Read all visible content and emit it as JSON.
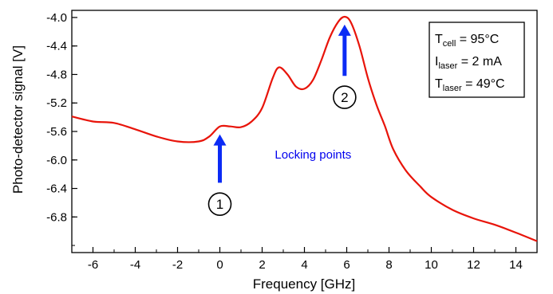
{
  "chart_data": {
    "type": "line",
    "xlabel": "Frequency [GHz]",
    "ylabel": "Photo-detector signal [V]",
    "xlim": [
      -7,
      15
    ],
    "ylim": [
      -7.3,
      -3.9
    ],
    "xticks": [
      -6,
      -4,
      -2,
      0,
      2,
      4,
      6,
      8,
      10,
      12,
      14
    ],
    "xtick_labels": [
      "-6",
      "-4",
      "-2",
      "0",
      "2",
      "4",
      "6",
      "8",
      "10",
      "12",
      "14"
    ],
    "yticks": [
      -4.0,
      -4.4,
      -4.8,
      -5.2,
      -5.6,
      -6.0,
      -6.4,
      -6.8
    ],
    "ytick_labels": [
      "-4.0",
      "-4.4",
      "-4.8",
      "-5.2",
      "-5.6",
      "-6.0",
      "-6.4",
      "-6.8"
    ],
    "grid": false,
    "series": [
      {
        "color": "#e8140a",
        "x": [
          -7,
          -6,
          -5,
          -4,
          -3,
          -2,
          -1,
          -0.5,
          0,
          0.5,
          1,
          1.5,
          2,
          2.5,
          2.8,
          3.2,
          3.6,
          4,
          4.4,
          4.8,
          5.2,
          5.6,
          5.9,
          6.2,
          6.6,
          7,
          7.4,
          7.8,
          8.2,
          8.8,
          9.5,
          10,
          11,
          12,
          13,
          14,
          15
        ],
        "y": [
          -5.39,
          -5.46,
          -5.48,
          -5.57,
          -5.67,
          -5.74,
          -5.74,
          -5.67,
          -5.53,
          -5.53,
          -5.54,
          -5.46,
          -5.27,
          -4.85,
          -4.7,
          -4.8,
          -4.97,
          -5.0,
          -4.88,
          -4.6,
          -4.28,
          -4.06,
          -3.99,
          -4.07,
          -4.4,
          -4.85,
          -5.22,
          -5.52,
          -5.85,
          -6.15,
          -6.38,
          -6.52,
          -6.7,
          -6.82,
          -6.91,
          -7.02,
          -7.14
        ]
      }
    ],
    "legend": {
      "line1": {
        "main": "T",
        "sub": "cell",
        "rest": " = 95°C"
      },
      "line2": {
        "main": "I",
        "sub": "laser",
        "rest": " = 2 mA"
      },
      "line3": {
        "main": "T",
        "sub": "laser",
        "rest": " = 49°C"
      },
      "placement": "top-right"
    },
    "annotations": {
      "text": "Locking points",
      "text_anchor": {
        "x": 2.6,
        "y": -5.98
      },
      "arrow_color": "#0b2bf5",
      "arrows": [
        {
          "x": 0,
          "y_tip": -5.64,
          "y_tail": -6.32,
          "label": "1",
          "label_y": -6.62
        },
        {
          "x": 5.9,
          "y_tip": -4.1,
          "y_tail": -4.82,
          "label": "2",
          "label_y": -5.12
        }
      ]
    }
  }
}
